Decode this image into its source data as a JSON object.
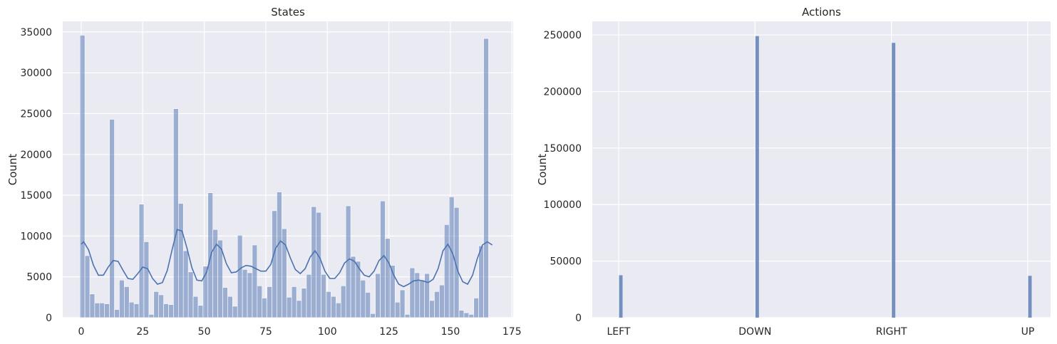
{
  "colors": {
    "plot_bg": "#eaeaf2",
    "grid": "#ffffff",
    "bar": "#4c72b0",
    "text": "#262626"
  },
  "chart_data": [
    {
      "type": "bar",
      "title": "States",
      "xlabel": "",
      "ylabel": "Count",
      "bin_width": 2,
      "xlim": [
        -7.5,
        175.5
      ],
      "ylim": [
        0,
        36300
      ],
      "xticks": [
        0,
        25,
        50,
        75,
        100,
        125,
        150,
        175
      ],
      "yticks": [
        0,
        5000,
        10000,
        15000,
        20000,
        25000,
        30000,
        35000
      ],
      "grid": true,
      "kde": true,
      "series": [
        {
          "x": [
            0,
            2,
            4,
            6,
            8,
            10,
            12,
            14,
            16,
            18,
            20,
            22,
            24,
            26,
            28,
            30,
            32,
            34,
            36,
            38,
            40,
            42,
            44,
            46,
            48,
            50,
            52,
            54,
            56,
            58,
            60,
            62,
            64,
            66,
            68,
            70,
            72,
            74,
            76,
            78,
            80,
            82,
            84,
            86,
            88,
            90,
            92,
            94,
            96,
            98,
            100,
            102,
            104,
            106,
            108,
            110,
            112,
            114,
            116,
            118,
            120,
            122,
            124,
            126,
            128,
            130,
            132,
            134,
            136,
            138,
            140,
            142,
            144,
            146,
            148,
            150,
            152,
            154,
            156,
            158,
            160,
            162,
            164,
            166
          ],
          "values": [
            34600,
            7600,
            2900,
            1800,
            1800,
            1700,
            24300,
            1000,
            4600,
            3800,
            1900,
            1700,
            13900,
            9300,
            400,
            3200,
            2800,
            1700,
            1600,
            25600,
            14000,
            8200,
            5600,
            2600,
            1500,
            6300,
            15300,
            10800,
            9500,
            3700,
            2600,
            1400,
            10100,
            5900,
            5500,
            8900,
            3900,
            2400,
            3800,
            13100,
            15400,
            10900,
            2500,
            3800,
            2100,
            3600,
            5300,
            13600,
            12900,
            5300,
            3200,
            2600,
            1800,
            3900,
            13700,
            7500,
            6900,
            4600,
            3100,
            500,
            5400,
            14300,
            9700,
            6400,
            1900,
            3400,
            400,
            6100,
            5500,
            4500,
            5400,
            2100,
            3200,
            4000,
            11400,
            14800,
            13500,
            900,
            600,
            400,
            2400,
            8800,
            34200,
            0
          ]
        }
      ],
      "kde_curve": {
        "x": [
          0,
          1,
          3,
          5,
          7,
          9,
          11,
          13,
          15,
          17,
          19,
          21,
          23,
          25,
          27,
          29,
          31,
          33,
          35,
          37,
          39,
          41,
          43,
          45,
          47,
          49,
          51,
          53,
          55,
          57,
          59,
          61,
          63,
          65,
          67,
          69,
          71,
          73,
          75,
          77,
          79,
          81,
          83,
          85,
          87,
          89,
          91,
          93,
          95,
          97,
          99,
          101,
          103,
          105,
          107,
          109,
          111,
          113,
          115,
          117,
          119,
          121,
          123,
          125,
          127,
          129,
          131,
          133,
          135,
          137,
          139,
          141,
          143,
          145,
          147,
          149,
          151,
          153,
          155,
          157,
          159,
          161,
          163,
          165,
          167
        ],
        "y": [
          9000,
          9300,
          8300,
          6400,
          5200,
          5200,
          6200,
          7000,
          6900,
          5800,
          4800,
          4700,
          5400,
          6200,
          6000,
          4800,
          4100,
          4300,
          5800,
          8400,
          10800,
          10600,
          8500,
          6100,
          4600,
          4500,
          5600,
          8000,
          9000,
          8400,
          6600,
          5500,
          5600,
          6100,
          6400,
          6300,
          6000,
          5700,
          5700,
          6500,
          8500,
          9400,
          8900,
          7300,
          5900,
          5400,
          6000,
          7400,
          8200,
          7300,
          5700,
          4800,
          4800,
          5500,
          6700,
          7200,
          6900,
          6000,
          5200,
          5000,
          5700,
          7000,
          7600,
          6700,
          5200,
          4100,
          3800,
          4100,
          4500,
          4600,
          4500,
          4300,
          4700,
          6000,
          8200,
          9000,
          7800,
          5700,
          4400,
          4100,
          5200,
          7300,
          8900,
          9300,
          8900
        ]
      }
    },
    {
      "type": "bar",
      "title": "Actions",
      "xlabel": "",
      "ylabel": "Count",
      "categories": [
        "LEFT",
        "DOWN",
        "RIGHT",
        "UP"
      ],
      "values": [
        37500,
        249000,
        243000,
        37000
      ],
      "ylim": [
        0,
        262000
      ],
      "yticks": [
        0,
        50000,
        100000,
        150000,
        200000,
        250000
      ],
      "grid": true
    }
  ]
}
